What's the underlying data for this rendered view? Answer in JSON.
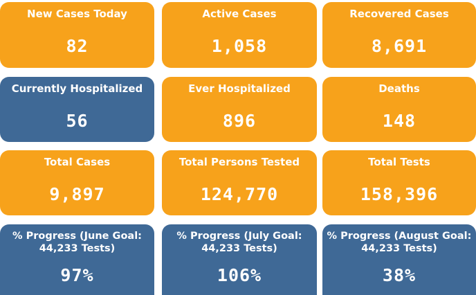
{
  "cards": [
    {
      "label": "New Cases Today",
      "value": "82"
    },
    {
      "label": "Active Cases",
      "value": "1,058"
    },
    {
      "label": "Recovered Cases",
      "value": "8,691"
    },
    {
      "label": "Currently Hospitalized",
      "value": "56"
    },
    {
      "label": "Ever Hospitalized",
      "value": "896"
    },
    {
      "label": "Deaths",
      "value": "148"
    },
    {
      "label": "Total Cases",
      "value": "9,897"
    },
    {
      "label": "Total Persons Tested",
      "value": "124,770"
    },
    {
      "label": "Total Tests",
      "value": "158,396"
    },
    {
      "label": "% Progress (June Goal: 44,233 Tests)",
      "value": "97%"
    },
    {
      "label": "% Progress (July Goal: 44,233 Tests)",
      "value": "106%"
    },
    {
      "label": "% Progress (August Goal: 44,233 Tests)",
      "value": "38%"
    }
  ],
  "colors": {
    "orange": "#f7a21b",
    "blue": "#3f6996",
    "text": "#ffffff"
  }
}
